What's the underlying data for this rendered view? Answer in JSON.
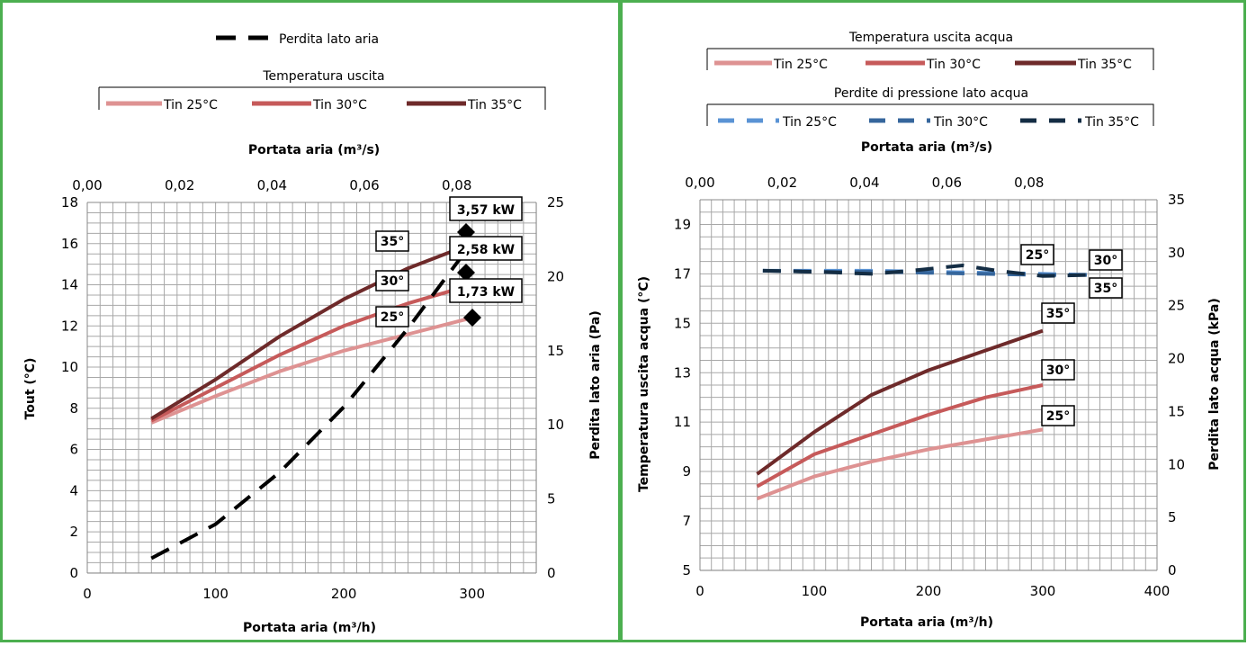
{
  "colors": {
    "frame": "#4caf50",
    "grid": "#a8a8a8",
    "t25": "#de9292",
    "t30": "#c65a5a",
    "t35": "#6e2a2a",
    "air_loss": "#000000",
    "p25": "#5a93d4",
    "p30": "#36669c",
    "p35": "#142d44"
  },
  "chart_data": [
    {
      "type": "line",
      "legend_air": {
        "label": "Perdita lato aria"
      },
      "legend_temp": {
        "title": "Temperatura uscita",
        "items": [
          "Tin 25°C",
          "Tin 30°C",
          "Tin 35°C"
        ]
      },
      "xlabel": "Portata aria (m³/h)",
      "x2label": "Portata aria (m³/s)",
      "ylabel": "Tout (°C)",
      "y2label": "Perdita lato aria (Pa)",
      "xlim": [
        0,
        350
      ],
      "x2lim": [
        0,
        0.0972
      ],
      "ylim": [
        0,
        18
      ],
      "y2lim": [
        0,
        25
      ],
      "xticks": [
        "0",
        "100",
        "200",
        "300"
      ],
      "x2ticks": [
        "0,00",
        "0,02",
        "0,04",
        "0,06",
        "0,08"
      ],
      "yticks": [
        "0",
        "2",
        "4",
        "6",
        "8",
        "10",
        "12",
        "14",
        "16",
        "18"
      ],
      "y2ticks": [
        "0",
        "5",
        "10",
        "15",
        "20",
        "25"
      ],
      "grid": true,
      "series": [
        {
          "name": "Tin 25°C",
          "axis": "left",
          "x": [
            50,
            100,
            150,
            200,
            250,
            300
          ],
          "y": [
            7.3,
            8.6,
            9.8,
            10.8,
            11.6,
            12.4
          ]
        },
        {
          "name": "Tin 30°C",
          "axis": "left",
          "x": [
            50,
            100,
            150,
            200,
            250,
            300
          ],
          "y": [
            7.4,
            9.0,
            10.6,
            12.0,
            13.1,
            14.0
          ]
        },
        {
          "name": "Tin 35°C",
          "axis": "left",
          "x": [
            50,
            100,
            150,
            200,
            250,
            300
          ],
          "y": [
            7.5,
            9.4,
            11.5,
            13.3,
            14.8,
            16.0
          ]
        },
        {
          "name": "Perdita lato aria",
          "axis": "right",
          "dashed": true,
          "x": [
            50,
            100,
            150,
            200,
            250,
            300
          ],
          "y": [
            1.0,
            3.3,
            6.8,
            11.2,
            16.5,
            22.3
          ]
        }
      ],
      "curve_labels": [
        {
          "text": "35°",
          "series": 2
        },
        {
          "text": "30°",
          "series": 1
        },
        {
          "text": "25°",
          "series": 0
        }
      ],
      "power_labels": [
        "3,57 kW",
        "2,58 kW",
        "1,73 kW"
      ]
    },
    {
      "type": "line",
      "legend_temp": {
        "title": "Temperatura uscita acqua",
        "items": [
          "Tin 25°C",
          "Tin 30°C",
          "Tin 35°C"
        ]
      },
      "legend_press": {
        "title": "Perdite di pressione lato acqua",
        "items": [
          "Tin 25°C",
          "Tin 30°C",
          "Tin 35°C"
        ]
      },
      "xlabel": "Portata aria (m³/h)",
      "x2label": "Portata aria (m³/s)",
      "ylabel": "Temperatura uscita acqua (°C)",
      "y2label": "Perdita lato acqua (kPa)",
      "xlim": [
        0,
        400
      ],
      "x2lim": [
        0,
        0.1111
      ],
      "ylim": [
        5,
        20
      ],
      "y2lim": [
        0,
        35
      ],
      "xticks": [
        "0",
        "100",
        "200",
        "300",
        "400"
      ],
      "x2ticks": [
        "0,00",
        "0,02",
        "0,04",
        "0,06",
        "0,08"
      ],
      "yticks": [
        "5",
        "7",
        "9",
        "11",
        "13",
        "15",
        "17",
        "19"
      ],
      "y2ticks": [
        "0",
        "5",
        "10",
        "15",
        "20",
        "25",
        "30",
        "35"
      ],
      "grid": true,
      "series": [
        {
          "name": "Tin 25°C",
          "axis": "left",
          "x": [
            50,
            100,
            150,
            200,
            250,
            300
          ],
          "y": [
            7.9,
            8.8,
            9.4,
            9.9,
            10.3,
            10.7
          ]
        },
        {
          "name": "Tin 30°C",
          "axis": "left",
          "x": [
            50,
            100,
            150,
            200,
            250,
            300
          ],
          "y": [
            8.4,
            9.7,
            10.5,
            11.3,
            12.0,
            12.5
          ]
        },
        {
          "name": "Tin 35°C",
          "axis": "left",
          "x": [
            50,
            100,
            150,
            200,
            250,
            300
          ],
          "y": [
            8.9,
            10.6,
            12.1,
            13.1,
            13.9,
            14.7
          ]
        },
        {
          "name": "Tin 25°C",
          "axis": "right",
          "dashed": true,
          "x": [
            55,
            100,
            150,
            200,
            250,
            300,
            345
          ],
          "y": [
            28.3,
            28.3,
            28.3,
            28.2,
            28.1,
            28.0,
            27.9
          ]
        },
        {
          "name": "Tin 30°C",
          "axis": "right",
          "dashed": true,
          "x": [
            55,
            100,
            150,
            200,
            250,
            300,
            345
          ],
          "y": [
            28.3,
            28.2,
            28.2,
            28.1,
            28.0,
            27.9,
            27.9
          ]
        },
        {
          "name": "Tin 35°C",
          "axis": "right",
          "dashed": true,
          "x": [
            55,
            100,
            150,
            185,
            230,
            260,
            300,
            340
          ],
          "y": [
            28.3,
            28.2,
            28.0,
            28.3,
            28.8,
            28.3,
            27.8,
            27.9
          ]
        }
      ],
      "curve_labels": [
        {
          "text": "35°",
          "series": 2
        },
        {
          "text": "30°",
          "series": 1
        },
        {
          "text": "25°",
          "series": 0
        },
        {
          "text": "25°",
          "series": 3
        },
        {
          "text": "30°",
          "series": 4
        },
        {
          "text": "35°",
          "series": 5
        }
      ]
    }
  ]
}
